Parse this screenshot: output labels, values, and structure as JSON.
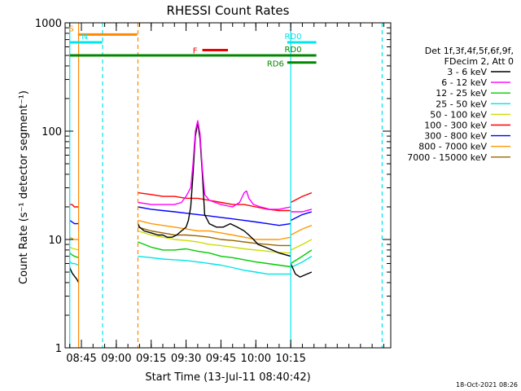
{
  "chart_data": {
    "type": "line",
    "title": "RHESSI Count Rates",
    "xlabel": "Start Time (13-Jul-11 08:40:42)",
    "ylabel": "Count Rate (s⁻¹ detector segment⁻¹)",
    "yscale": "log",
    "ylim": [
      1,
      1000
    ],
    "y_ticks": [
      "1",
      "10",
      "100",
      "1000"
    ],
    "x_ticks": [
      "08:45",
      "09:00",
      "09:15",
      "09:30",
      "09:45",
      "10:00",
      "10:15"
    ],
    "grid": false,
    "legend_position": "right",
    "legend_title": [
      "Det 1f,3f,4f,5f,6f,9f,",
      "FDecim 2, Att 0"
    ],
    "series": [
      {
        "name": "3 - 6 keV",
        "color": "#000000",
        "segments": [
          {
            "x": [
              40,
              40.5,
              41,
              42,
              43,
              43.8
            ],
            "y": [
              5.5,
              5.2,
              4.9,
              4.6,
              4.3,
              4.0
            ]
          },
          {
            "x": [
              69.3,
              70,
              72,
              75,
              78,
              80,
              82,
              84,
              86,
              88,
              90,
              91,
              92,
              93,
              94,
              95,
              96,
              97,
              98,
              100,
              103,
              106,
              109,
              112,
              115,
              117,
              119,
              121,
              124,
              127,
              130,
              135
            ],
            "y": [
              14,
              13,
              12,
              11.5,
              11,
              11,
              10.5,
              10.5,
              11,
              12,
              13,
              15,
              20,
              40,
              90,
              120,
              85,
              40,
              17,
              14,
              13,
              13,
              14,
              13,
              12,
              11,
              10,
              9,
              8.5,
              8,
              7.5,
              7.0
            ]
          },
          {
            "x": [
              135,
              137,
              139,
              141,
              144
            ],
            "y": [
              6.0,
              4.8,
              4.5,
              4.7,
              5.0
            ]
          }
        ]
      },
      {
        "name": "6 - 12 keV",
        "color": "#ff00ff",
        "segments": [
          {
            "x": [
              69.3,
              75,
              80,
              85,
              88,
              90,
              92,
              93,
              94,
              95,
              96,
              97,
              98,
              100,
              105,
              110,
              113,
              115,
              116,
              117,
              119,
              122,
              126,
              130,
              135
            ],
            "y": [
              22,
              21,
              21,
              21,
              22,
              25,
              30,
              50,
              100,
              125,
              95,
              45,
              26,
              23,
              21,
              20,
              22,
              27,
              28,
              24,
              21,
              20,
              19,
              19,
              20
            ]
          },
          {
            "x": [
              135,
              140,
              144
            ],
            "y": [
              18,
              18,
              19
            ]
          }
        ]
      },
      {
        "name": "12 - 25 keV",
        "color": "#00cc00",
        "segments": [
          {
            "x": [
              40,
              41,
              42,
              43.8
            ],
            "y": [
              7.5,
              7.2,
              7.0,
              6.8
            ]
          },
          {
            "x": [
              69.3,
              75,
              80,
              85,
              90,
              95,
              100,
              105,
              110,
              115,
              120,
              125,
              130,
              135
            ],
            "y": [
              9.5,
              8.5,
              8.0,
              8.0,
              8.2,
              7.8,
              7.5,
              7.0,
              6.8,
              6.5,
              6.2,
              6.0,
              5.8,
              5.6
            ]
          },
          {
            "x": [
              135,
              140,
              144
            ],
            "y": [
              6.0,
              7.0,
              8.0
            ]
          }
        ]
      },
      {
        "name": "25 - 50 keV",
        "color": "#00e5e5",
        "segments": [
          {
            "x": [
              40,
              41,
              42,
              43.8
            ],
            "y": [
              6.2,
              6.0,
              6.0,
              5.8
            ]
          },
          {
            "x": [
              69.3,
              75,
              80,
              85,
              90,
              95,
              100,
              105,
              110,
              115,
              120,
              125,
              130,
              135
            ],
            "y": [
              7.0,
              6.8,
              6.6,
              6.5,
              6.4,
              6.2,
              6.0,
              5.8,
              5.5,
              5.2,
              5.0,
              4.8,
              4.8,
              4.8
            ]
          },
          {
            "x": [
              135,
              140,
              144
            ],
            "y": [
              5.5,
              6.2,
              7.0
            ]
          }
        ]
      },
      {
        "name": "50 - 100 keV",
        "color": "#ccdd00",
        "segments": [
          {
            "x": [
              40,
              41,
              42,
              43.8
            ],
            "y": [
              8.5,
              8.3,
              8.2,
              8.0
            ]
          },
          {
            "x": [
              69.3,
              75,
              80,
              85,
              90,
              95,
              100,
              105,
              110,
              115,
              120,
              125,
              130,
              135
            ],
            "y": [
              12,
              11,
              10.5,
              10,
              9.8,
              9.5,
              9.0,
              8.8,
              8.5,
              8.2,
              8.0,
              7.8,
              7.6,
              7.5
            ]
          },
          {
            "x": [
              135,
              140,
              144
            ],
            "y": [
              8.0,
              9.0,
              10
            ]
          }
        ]
      },
      {
        "name": "100 - 300 keV",
        "color": "#ff0000",
        "segments": [
          {
            "x": [
              40,
              41,
              42,
              43.8
            ],
            "y": [
              21,
              21,
              20,
              20
            ]
          },
          {
            "x": [
              69.3,
              75,
              80,
              85,
              90,
              95,
              100,
              105,
              110,
              115,
              120,
              125,
              130,
              135
            ],
            "y": [
              27,
              26,
              25,
              25,
              24,
              24,
              23,
              22,
              21,
              21,
              20,
              19,
              18.5,
              18.5
            ]
          },
          {
            "x": [
              135,
              140,
              144
            ],
            "y": [
              22,
              25,
              27
            ]
          }
        ]
      },
      {
        "name": "300 - 800 keV",
        "color": "#0000ff",
        "segments": [
          {
            "x": [
              40,
              41,
              42,
              43.8
            ],
            "y": [
              15,
              14.5,
              14,
              14
            ]
          },
          {
            "x": [
              69.3,
              75,
              80,
              85,
              90,
              95,
              100,
              105,
              110,
              115,
              120,
              125,
              130,
              135
            ],
            "y": [
              20,
              19,
              18.5,
              18,
              17.5,
              17,
              16.5,
              16,
              15.5,
              15,
              14.5,
              14,
              13.5,
              14
            ]
          },
          {
            "x": [
              135,
              140,
              144
            ],
            "y": [
              15,
              17,
              18
            ]
          }
        ]
      },
      {
        "name": "800 - 7000 keV",
        "color": "#ff9900",
        "segments": [
          {
            "x": [
              40,
              41,
              42,
              43.8
            ],
            "y": [
              10.5,
              10.2,
              10,
              10
            ]
          },
          {
            "x": [
              69.3,
              75,
              80,
              85,
              90,
              95,
              100,
              105,
              110,
              115,
              120,
              125,
              130,
              135
            ],
            "y": [
              15,
              14,
              13.5,
              13,
              12.5,
              12,
              12,
              11.5,
              11,
              10.5,
              10,
              10,
              10,
              10.5
            ]
          },
          {
            "x": [
              135,
              140,
              144
            ],
            "y": [
              11,
              12.5,
              13.5
            ]
          }
        ]
      },
      {
        "name": "7000 - 15000 keV",
        "color": "#996600",
        "segments": [
          {
            "x": [
              69.3,
              75,
              80,
              85,
              90,
              95,
              100,
              105,
              110,
              115,
              120,
              125,
              130,
              135
            ],
            "y": [
              13,
              12,
              11.5,
              11,
              11,
              10.8,
              10.5,
              10,
              9.8,
              9.5,
              9.2,
              9.0,
              8.8,
              8.8
            ]
          }
        ]
      }
    ],
    "annotations": [
      {
        "label": "S",
        "color": "#ff8800",
        "x": [
          43.5,
          69
        ],
        "y": 780
      },
      {
        "label": "N",
        "color": "#00e5ee",
        "x": [
          40,
          54
        ],
        "y": 660
      },
      {
        "label": "F",
        "color": "#ee0000",
        "x": [
          97,
          108
        ],
        "y": 560
      },
      {
        "label": "RD0",
        "color": "#00e5ee",
        "x": [
          133.5,
          146
        ],
        "y": 660
      },
      {
        "label": "RD0",
        "color": "#008800",
        "x": [
          40,
          146
        ],
        "y": 500
      },
      {
        "label": "RD6",
        "color": "#008800",
        "x": [
          133.5,
          146
        ],
        "y": 430
      }
    ],
    "vlines": [
      {
        "x": 40,
        "color": "#00e5ee",
        "style": "solid"
      },
      {
        "x": 43.8,
        "color": "#ff8800",
        "style": "solid"
      },
      {
        "x": 54.1,
        "color": "#00e5ee",
        "style": "dashed"
      },
      {
        "x": 69.3,
        "color": "#ff8800",
        "style": "dashed"
      },
      {
        "x": 135,
        "color": "#00e5ee",
        "style": "solid"
      },
      {
        "x": 174.3,
        "color": "#00e5ee",
        "style": "dashed"
      }
    ],
    "footer_timestamp": "18-Oct-2021 08:26"
  }
}
